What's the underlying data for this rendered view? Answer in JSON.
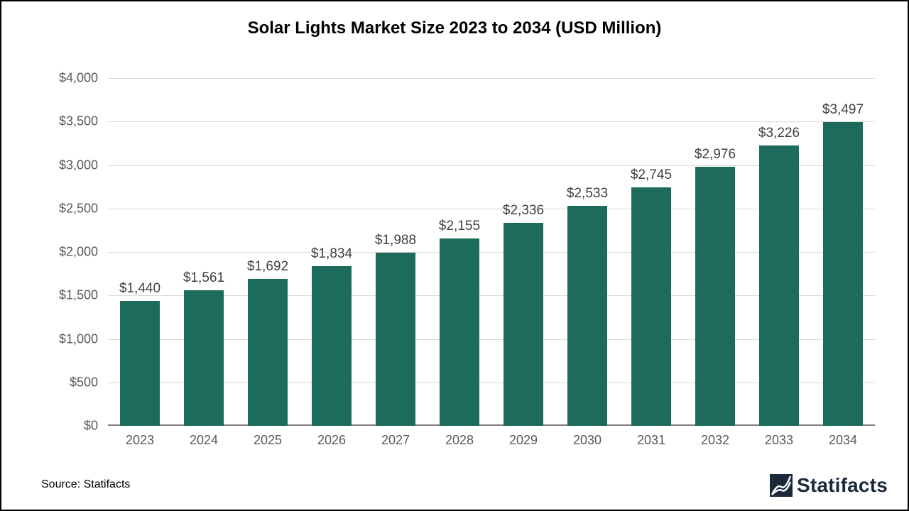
{
  "chart": {
    "type": "bar",
    "title": "Solar Lights Market Size 2023 to 2034 (USD Million)",
    "title_fontsize": 24,
    "title_color": "#000000",
    "background_color": "#ffffff",
    "frame_border_color": "#000000",
    "bar_color": "#1d6b5b",
    "grid_color": "#d9d9d9",
    "axis_line_color": "#808080",
    "tick_label_color": "#595959",
    "tick_label_fontsize": 18,
    "data_label_color": "#404040",
    "data_label_fontsize": 19,
    "y": {
      "min": 0,
      "max": 4000,
      "tick_step": 500,
      "ticks": [
        0,
        500,
        1000,
        1500,
        2000,
        2500,
        3000,
        3500,
        4000
      ],
      "tick_labels": [
        "$0",
        "$500",
        "$1,000",
        "$1,500",
        "$2,000",
        "$2,500",
        "$3,000",
        "$3,500",
        "$4,000"
      ]
    },
    "categories": [
      "2023",
      "2024",
      "2025",
      "2026",
      "2027",
      "2028",
      "2029",
      "2030",
      "2031",
      "2032",
      "2033",
      "2034"
    ],
    "values": [
      1440,
      1561,
      1692,
      1834,
      1988,
      2155,
      2336,
      2533,
      2745,
      2976,
      3226,
      3497
    ],
    "value_labels": [
      "$1,440",
      "$1,561",
      "$1,692",
      "$1,834",
      "$1,988",
      "$2,155",
      "$2,336",
      "$2,533",
      "$2,745",
      "$2,976",
      "$3,226",
      "$3,497"
    ],
    "bar_width_ratio": 0.62,
    "source_text": "Source: Statifacts",
    "source_fontsize": 16,
    "brand_text": "Statifacts",
    "brand_fontsize": 28,
    "brand_color": "#1a2a3a"
  }
}
